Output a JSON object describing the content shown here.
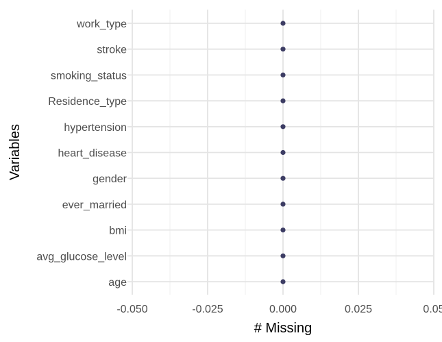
{
  "chart_data": {
    "type": "scatter",
    "title": "",
    "xlabel": "# Missing",
    "ylabel": "Variables",
    "xlim": [
      -0.05,
      0.05
    ],
    "x_ticks": [
      -0.05,
      -0.025,
      0.0,
      0.025,
      0.05
    ],
    "x_tick_labels": [
      "-0.050",
      "-0.025",
      "0.000",
      "0.025",
      "0.05"
    ],
    "categories": [
      "work_type",
      "stroke",
      "smoking_status",
      "Residence_type",
      "hypertension",
      "heart_disease",
      "gender",
      "ever_married",
      "bmi",
      "avg_glucose_level",
      "age"
    ],
    "values": [
      0,
      0,
      0,
      0,
      0,
      0,
      0,
      0,
      0,
      0,
      0
    ],
    "grid": true,
    "colors": {
      "point": "#3d3d64",
      "grid_major": "#e4e4e4",
      "grid_minor": "#efefef"
    }
  }
}
